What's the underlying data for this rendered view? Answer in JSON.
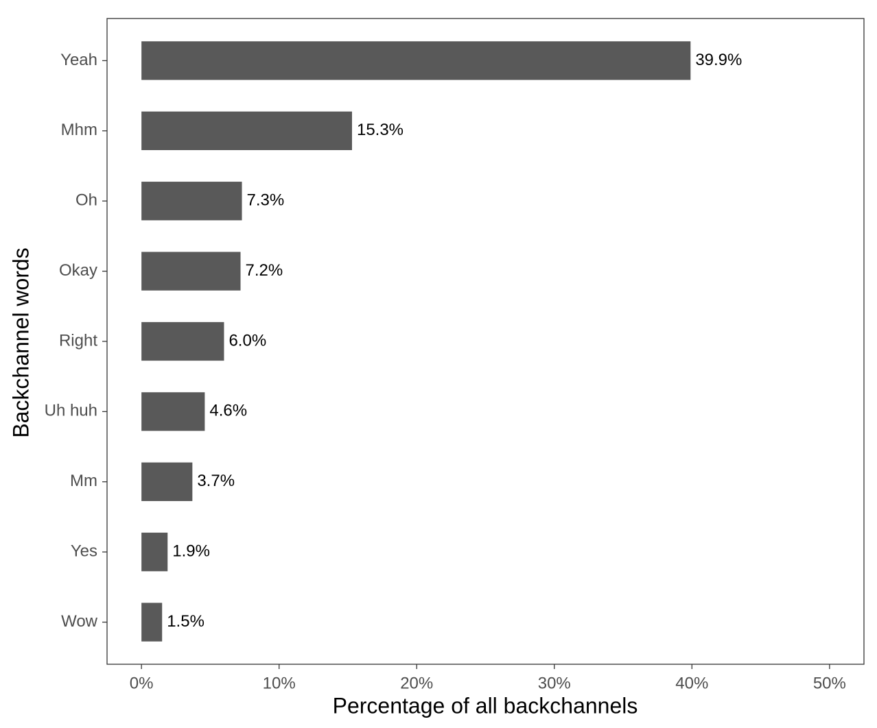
{
  "chart_data": {
    "type": "bar",
    "orientation": "horizontal",
    "categories": [
      "Yeah",
      "Mhm",
      "Oh",
      "Okay",
      "Right",
      "Uh huh",
      "Mm",
      "Yes",
      "Wow"
    ],
    "values": [
      39.9,
      15.3,
      7.3,
      7.2,
      6.0,
      4.6,
      3.7,
      1.9,
      1.5
    ],
    "value_labels": [
      "39.9%",
      "15.3%",
      "7.3%",
      "7.2%",
      "6.0%",
      "4.6%",
      "3.7%",
      "1.9%",
      "1.5%"
    ],
    "color": "#595959",
    "x_label": "Percentage of all backchannels",
    "y_label": "Backchannel words",
    "xlim": [
      -2.5,
      52.5
    ],
    "xticks": [
      {
        "value": 0,
        "label": "0%"
      },
      {
        "value": 10,
        "label": "10%"
      },
      {
        "value": 20,
        "label": "20%"
      },
      {
        "value": 30,
        "label": "30%"
      },
      {
        "value": 40,
        "label": "40%"
      },
      {
        "value": 50,
        "label": "50%"
      }
    ],
    "grid": false
  }
}
